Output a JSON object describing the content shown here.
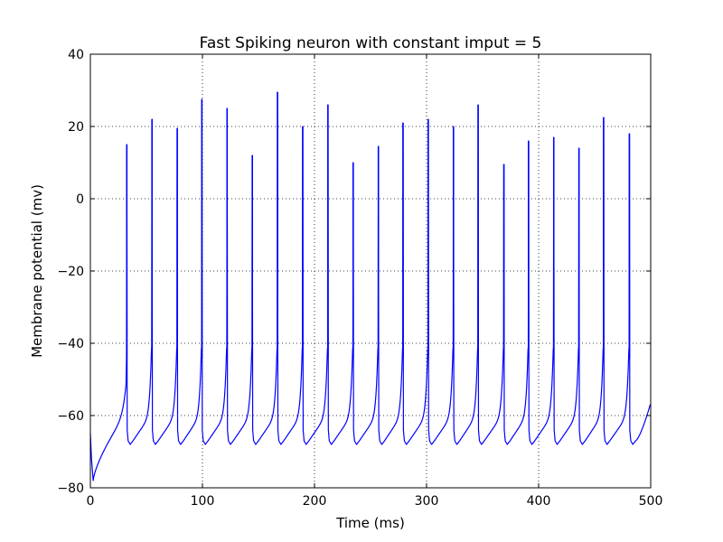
{
  "chart_data": {
    "type": "line",
    "title": "Fast Spiking neuron with constant imput = 5",
    "xlabel": "Time (ms)",
    "ylabel": "Membrane potential (mv)",
    "xlim": [
      0,
      500
    ],
    "ylim": [
      -80,
      40
    ],
    "xticks": [
      0,
      100,
      200,
      300,
      400,
      500
    ],
    "yticks": [
      -80,
      -60,
      -40,
      -20,
      0,
      20,
      40
    ],
    "xtick_labels": [
      "0",
      "100",
      "200",
      "300",
      "400",
      "500"
    ],
    "ytick_labels": [
      "−80",
      "−60",
      "−40",
      "−20",
      "0",
      "20",
      "40"
    ],
    "grid": true,
    "line_color": "#0000ff",
    "spikes": [
      {
        "t": 32.5,
        "peak": 15
      },
      {
        "t": 55,
        "peak": 22
      },
      {
        "t": 77.5,
        "peak": 19.5
      },
      {
        "t": 99.5,
        "peak": 27.5
      },
      {
        "t": 122,
        "peak": 25
      },
      {
        "t": 144.5,
        "peak": 12
      },
      {
        "t": 167,
        "peak": 29.5
      },
      {
        "t": 189.5,
        "peak": 20
      },
      {
        "t": 212,
        "peak": 26
      },
      {
        "t": 234.5,
        "peak": 10
      },
      {
        "t": 257,
        "peak": 14.5
      },
      {
        "t": 279,
        "peak": 21
      },
      {
        "t": 301.5,
        "peak": 22
      },
      {
        "t": 324,
        "peak": 20
      },
      {
        "t": 346,
        "peak": 26
      },
      {
        "t": 369,
        "peak": 9.5
      },
      {
        "t": 391,
        "peak": 16
      },
      {
        "t": 413.5,
        "peak": 17
      },
      {
        "t": 436,
        "peak": 14
      },
      {
        "t": 458,
        "peak": 22.5
      },
      {
        "t": 481,
        "peak": 18
      }
    ],
    "initial_potential": -65,
    "trough_potential": -68,
    "initial_minimum": {
      "t": 2.5,
      "v": -78
    },
    "final_value": {
      "t": 500,
      "v": -57
    }
  }
}
